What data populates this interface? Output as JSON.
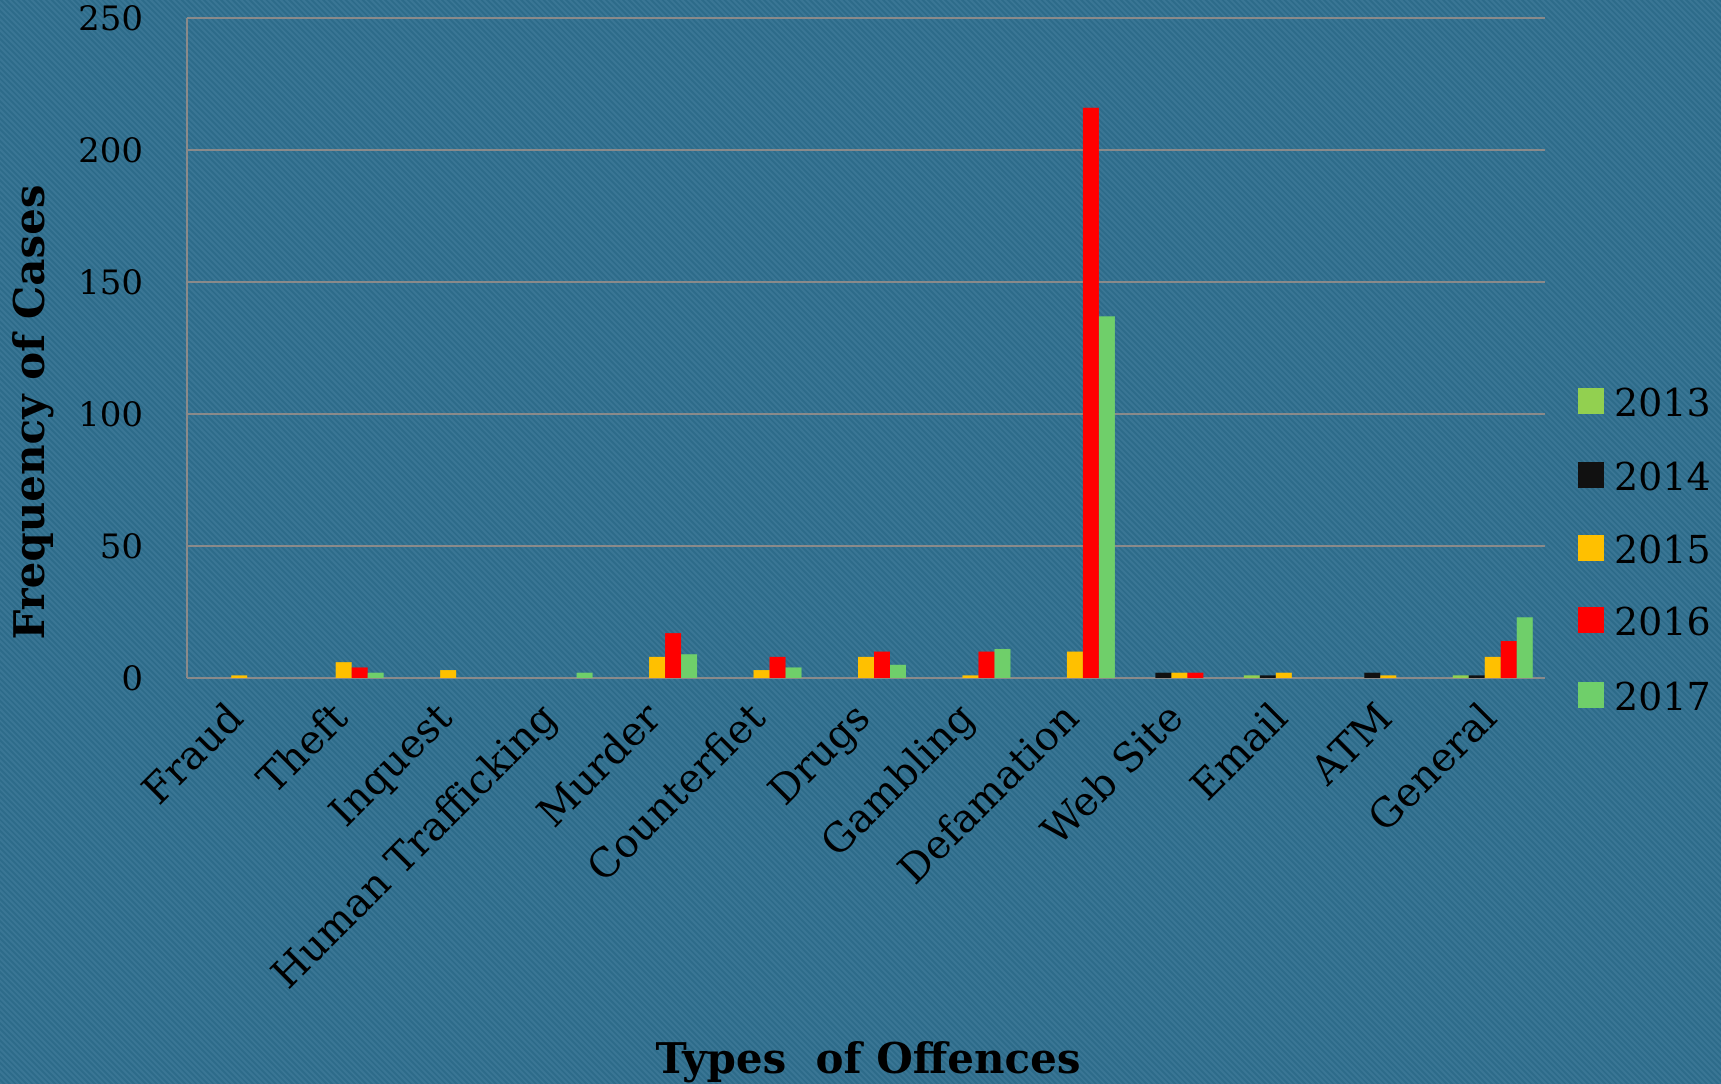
{
  "chart_data": {
    "type": "bar",
    "title": "",
    "xlabel": "Types  of Offences",
    "ylabel": "Frequency of Cases",
    "ylim": [
      0,
      250
    ],
    "yticks": [
      0,
      50,
      100,
      150,
      200,
      250
    ],
    "grid": true,
    "legend_position": "right",
    "categories": [
      "Fraud",
      "Theft",
      "Inquest",
      "Human Trafficking",
      "Murder",
      "Counterfiet",
      "Drugs",
      "Gambling",
      "Defamation",
      "Web Site",
      "Email",
      "ATM",
      "General"
    ],
    "series": [
      {
        "name": "2013",
        "color": "#92d050",
        "values": [
          0,
          0,
          0,
          0,
          0,
          0,
          0,
          0,
          0,
          0,
          1,
          0,
          1
        ]
      },
      {
        "name": "2014",
        "color": "#111111",
        "values": [
          0,
          0,
          0,
          0,
          0,
          0,
          0,
          0,
          0,
          2,
          1,
          2,
          1
        ]
      },
      {
        "name": "2015",
        "color": "#ffc000",
        "values": [
          1,
          6,
          3,
          0,
          8,
          3,
          8,
          1,
          10,
          2,
          2,
          1,
          8
        ]
      },
      {
        "name": "2016",
        "color": "#ff0000",
        "values": [
          0,
          4,
          0,
          0,
          17,
          8,
          10,
          10,
          216,
          2,
          0,
          0,
          14
        ]
      },
      {
        "name": "2017",
        "color": "#6fcf6a",
        "values": [
          0,
          2,
          0,
          2,
          9,
          4,
          5,
          11,
          137,
          0,
          0,
          0,
          23
        ]
      }
    ]
  }
}
